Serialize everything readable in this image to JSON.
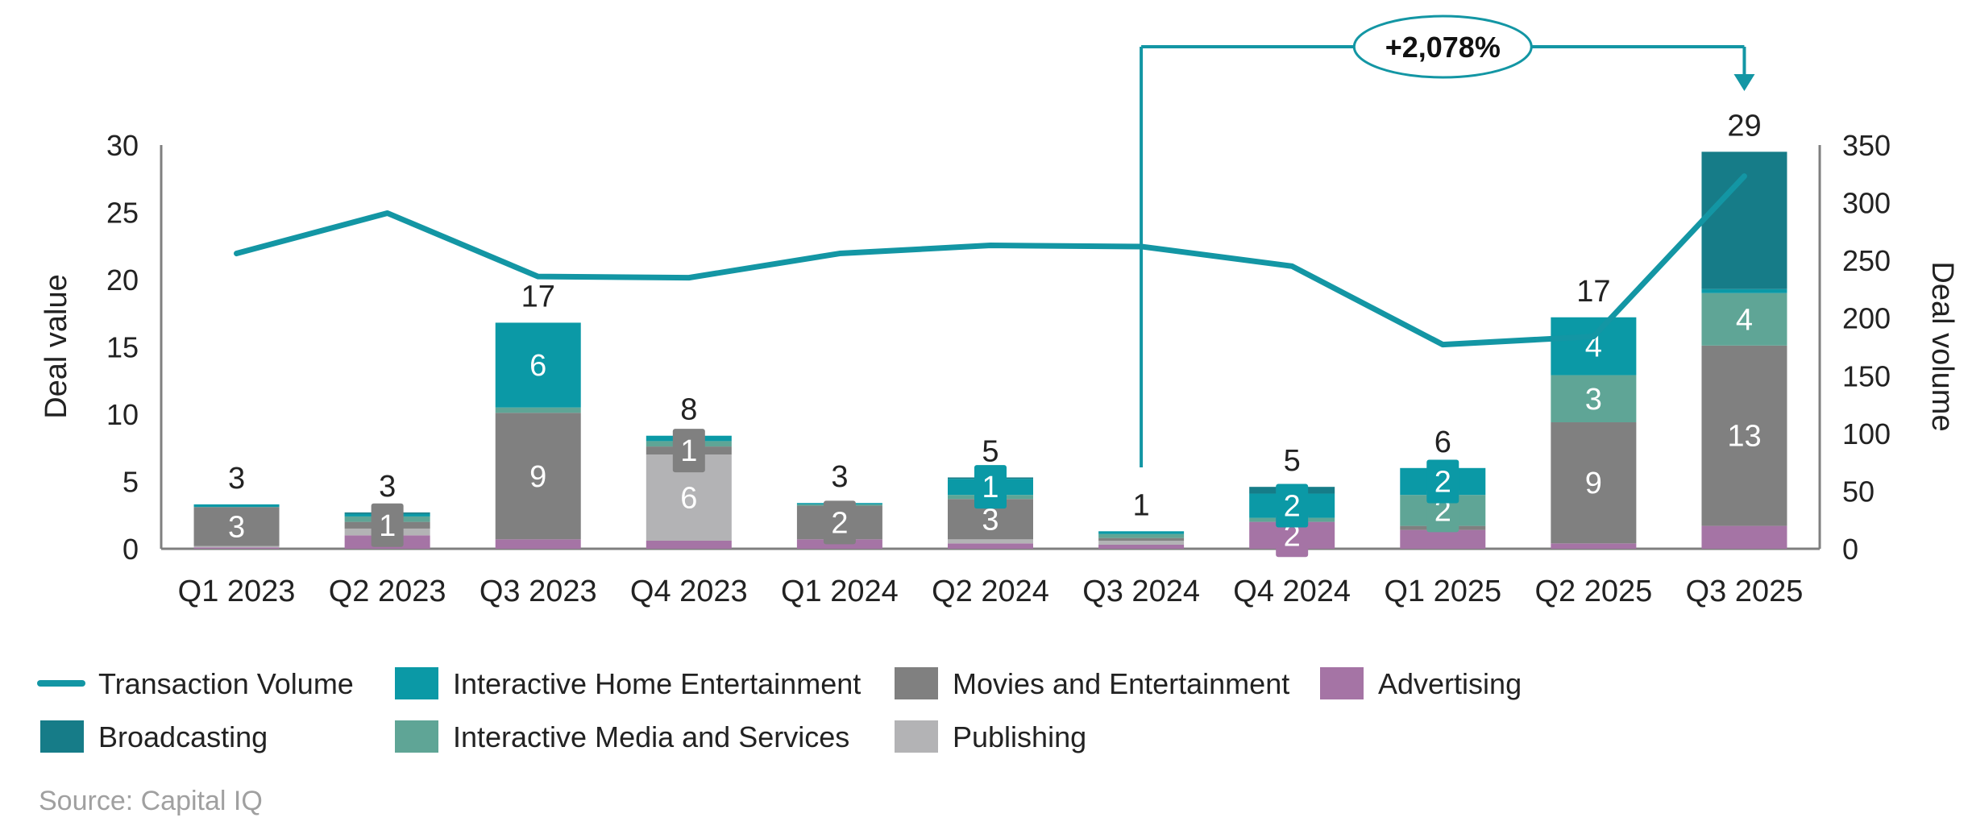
{
  "chart_data": {
    "type": "bar",
    "categories": [
      "Q1 2023",
      "Q2 2023",
      "Q3 2023",
      "Q4 2023",
      "Q1 2024",
      "Q2 2024",
      "Q3 2024",
      "Q4 2024",
      "Q1 2025",
      "Q2 2025",
      "Q3 2025"
    ],
    "ylabel": "Deal value",
    "y2label": "Deal volume",
    "ylim": [
      0,
      30
    ],
    "yticks": [
      0,
      5,
      10,
      15,
      20,
      25,
      30
    ],
    "y2lim": [
      0,
      350
    ],
    "y2ticks": [
      0,
      50,
      100,
      150,
      200,
      250,
      300,
      350
    ],
    "totals": [
      "3",
      "3",
      "17",
      "8",
      "3",
      "5",
      "1",
      "5",
      "6",
      "17",
      "29"
    ],
    "series": [
      {
        "name": "Advertising",
        "color": "#a574a5",
        "values": [
          0.1,
          1.0,
          0.7,
          0.6,
          0.7,
          0.4,
          0.3,
          2.0,
          1.4,
          0.4,
          1.7
        ],
        "labels": [
          "",
          "",
          "",
          "",
          "",
          "",
          "",
          "2",
          "",
          "",
          ""
        ]
      },
      {
        "name": "Publishing",
        "color": "#b3b3b5",
        "values": [
          0.1,
          0.5,
          0,
          6.4,
          0,
          0.3,
          0.3,
          0,
          0,
          0,
          0
        ],
        "labels": [
          "",
          "",
          "",
          "6",
          "",
          "",
          "",
          "",
          "",
          "",
          ""
        ]
      },
      {
        "name": "Movies and Entertainment",
        "color": "#808080",
        "values": [
          2.9,
          0.5,
          9.4,
          0.6,
          2.5,
          3.0,
          0.2,
          0,
          0.3,
          9.0,
          13.4
        ],
        "labels": [
          "3",
          "1",
          "9",
          "1",
          "2",
          "3",
          "",
          "",
          "",
          "9",
          "13"
        ]
      },
      {
        "name": "Interactive Media and Services",
        "color": "#5fa596",
        "values": [
          0,
          0.4,
          0.4,
          0.4,
          0.1,
          0.3,
          0.3,
          0.3,
          2.3,
          3.5,
          3.9
        ],
        "labels": [
          "",
          "",
          "",
          "",
          "",
          "",
          "",
          "",
          "2",
          "3",
          "4"
        ]
      },
      {
        "name": "Interactive Home Entertainment",
        "color": "#0b99a6",
        "values": [
          0.2,
          0.2,
          6.3,
          0.4,
          0.1,
          1.2,
          0.2,
          1.8,
          2.0,
          4.3,
          0.3
        ],
        "labels": [
          "",
          "",
          "6",
          "",
          "",
          "1",
          "",
          "2",
          "2",
          "4",
          ""
        ]
      },
      {
        "name": "Broadcasting",
        "color": "#167c88",
        "values": [
          0,
          0.1,
          0,
          0,
          0,
          0.1,
          0,
          0.5,
          0,
          0,
          10.2
        ],
        "labels": [
          "",
          "",
          "",
          "",
          "",
          "",
          "",
          "",
          "",
          "",
          ""
        ]
      }
    ],
    "line": {
      "name": "Transaction Volume",
      "color": "#1396a4",
      "values": [
        256,
        291,
        236,
        235,
        256,
        263,
        262,
        245,
        177,
        184,
        323
      ]
    },
    "annotation": {
      "label": "+2,078%",
      "from": "Q3 2024",
      "to": "Q3 2025"
    },
    "legend_order": [
      "Transaction Volume",
      "Interactive Home Entertainment",
      "Movies and Entertainment",
      "Advertising",
      "Broadcasting",
      "Interactive Media and Services",
      "Publishing"
    ],
    "legend_position": "bottom-left"
  },
  "source": "Source: Capital IQ"
}
